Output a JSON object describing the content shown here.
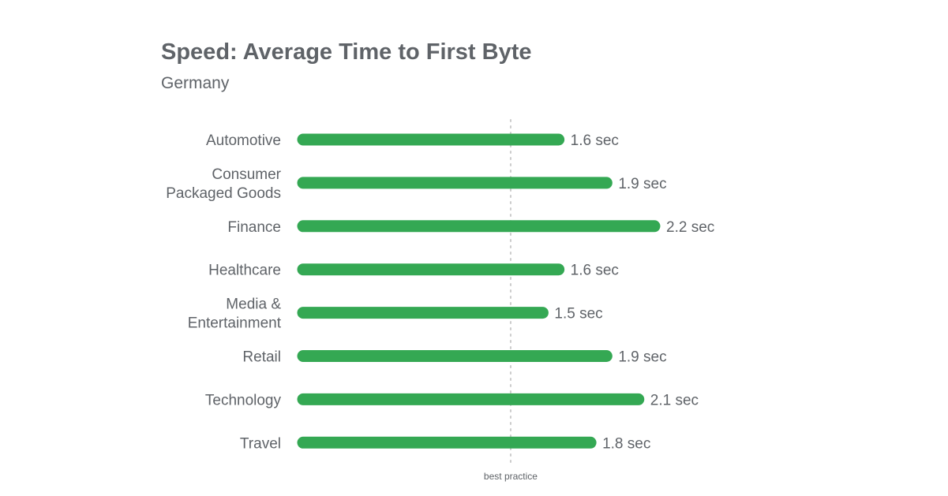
{
  "chart_data": {
    "type": "bar",
    "orientation": "horizontal",
    "title": "Speed: Average Time to First Byte",
    "subtitle": "Germany",
    "categories": [
      [
        "Automotive"
      ],
      [
        "Consumer",
        "Packaged Goods"
      ],
      [
        "Finance"
      ],
      [
        "Healthcare"
      ],
      [
        "Media &",
        "Entertainment"
      ],
      [
        "Retail"
      ],
      [
        "Technology"
      ],
      [
        "Travel"
      ]
    ],
    "values": [
      1.6,
      1.9,
      2.2,
      1.6,
      1.5,
      1.9,
      2.1,
      1.8
    ],
    "value_labels": [
      "1.6 sec",
      "1.9 sec",
      "2.2 sec",
      "1.6 sec",
      "1.5 sec",
      "1.9 sec",
      "2.1 sec",
      "1.8 sec"
    ],
    "unit": "sec",
    "xlim": [
      0,
      2.2
    ],
    "reference_line": {
      "value": 1.3,
      "label": "best practice"
    },
    "colors": {
      "bar": "#34a853",
      "text": "#5f6368",
      "reference_line": "#cccccc"
    },
    "grid": false,
    "legend": "none"
  }
}
